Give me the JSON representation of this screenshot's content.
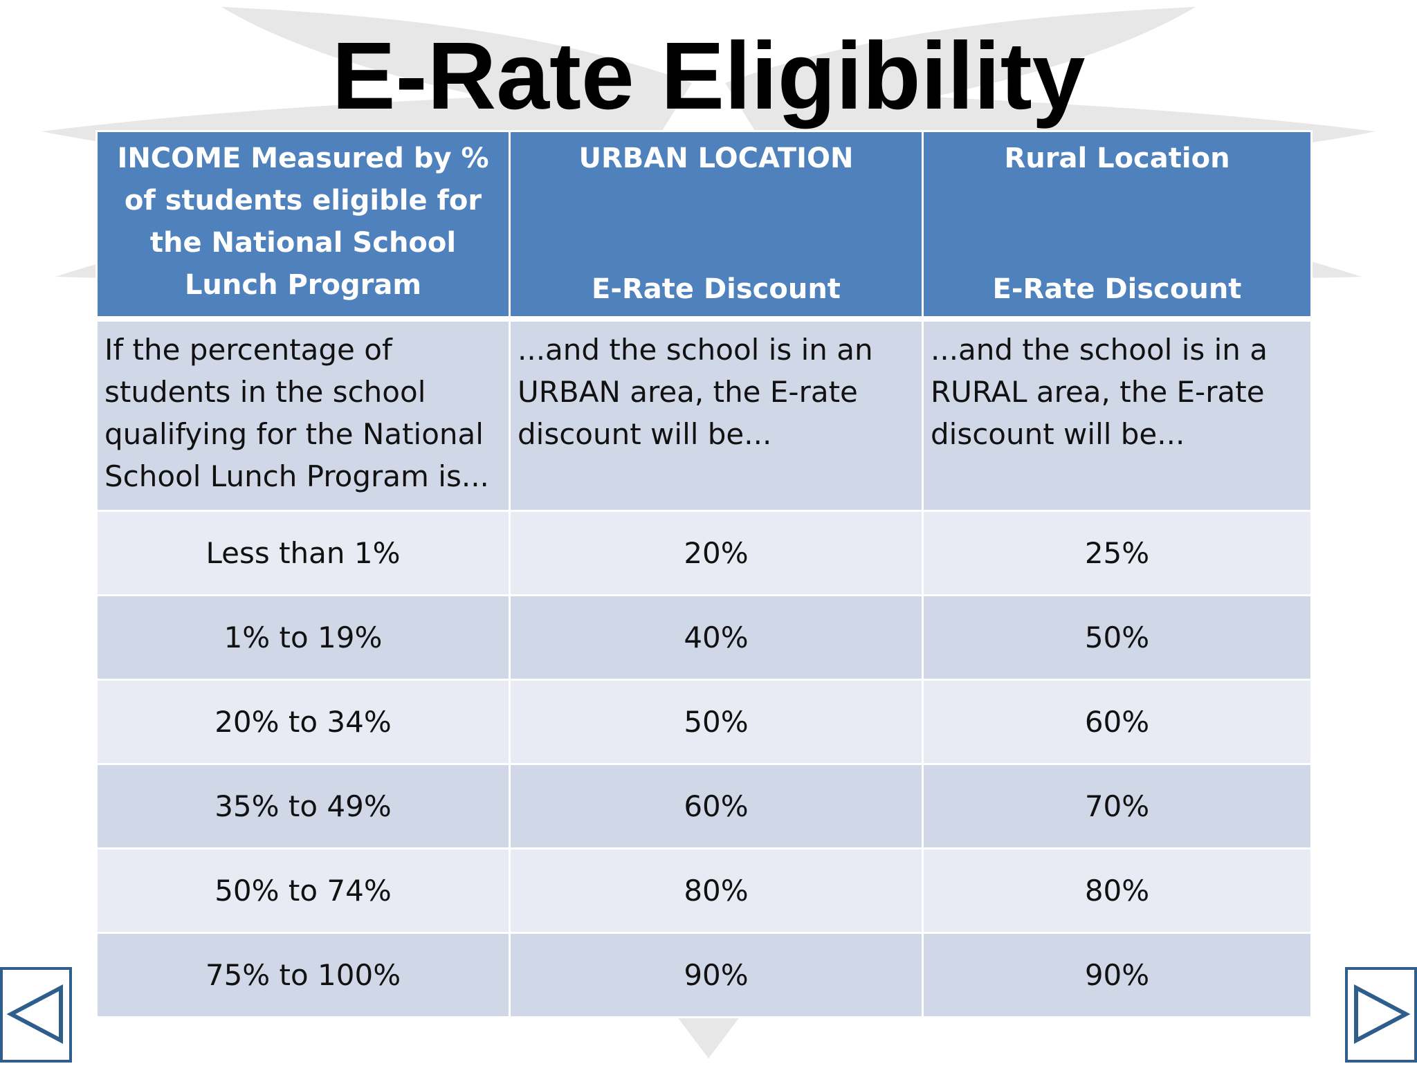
{
  "title": "E-Rate Eligibility",
  "table": {
    "headers": [
      {
        "top": "INCOME Measured by % of students eligible for the National School Lunch Program",
        "bottom": ""
      },
      {
        "top": "URBAN LOCATION",
        "bottom": "E-Rate Discount"
      },
      {
        "top": "Rural Location",
        "bottom": "E-Rate Discount"
      }
    ],
    "intro": [
      "If the percentage of students in the school qualifying for the National School Lunch Program is...",
      "...and the school is in an URBAN area, the E-rate discount will be...",
      "...and the school is in a RURAL area, the E-rate discount will be..."
    ],
    "rows": [
      [
        "Less than 1%",
        "20%",
        "25%"
      ],
      [
        "1% to 19%",
        "40%",
        "50%"
      ],
      [
        "20% to 34%",
        "50%",
        "60%"
      ],
      [
        "35% to 49%",
        "60%",
        "70%"
      ],
      [
        "50% to 74%",
        "80%",
        "80%"
      ],
      [
        "75% to 100%",
        "90%",
        "90%"
      ]
    ]
  },
  "nav": {
    "previous_icon": "triangle-left-icon",
    "next_icon": "triangle-right-icon"
  },
  "colors": {
    "header": "#4f81bd",
    "row_dark": "#d0d8e8",
    "row_light": "#e9ebf4",
    "nav": "#2f5d8c"
  }
}
